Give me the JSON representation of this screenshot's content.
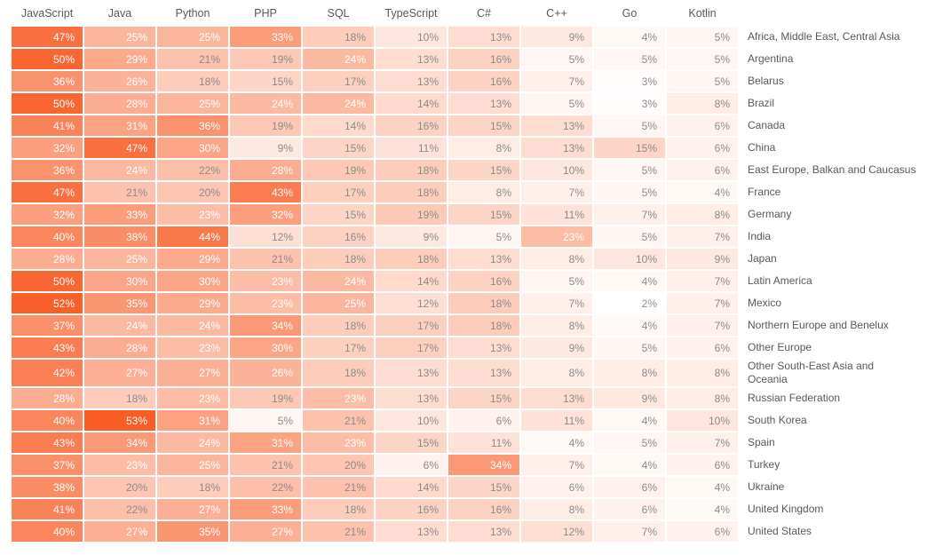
{
  "chart_data": {
    "type": "heatmap",
    "title": "",
    "value_suffix": "%",
    "columns": [
      "JavaScript",
      "Java",
      "Python",
      "PHP",
      "SQL",
      "TypeScript",
      "C#",
      "C++",
      "Go",
      "Kotlin"
    ],
    "rows": [
      {
        "name": "Africa, Middle East, Central Asia",
        "values": [
          47,
          25,
          25,
          33,
          18,
          10,
          13,
          9,
          4,
          5
        ]
      },
      {
        "name": "Argentina",
        "values": [
          50,
          29,
          21,
          19,
          24,
          13,
          16,
          5,
          5,
          5
        ]
      },
      {
        "name": "Belarus",
        "values": [
          36,
          26,
          18,
          15,
          17,
          13,
          16,
          7,
          3,
          5
        ]
      },
      {
        "name": "Brazil",
        "values": [
          50,
          28,
          25,
          24,
          24,
          14,
          13,
          5,
          3,
          8
        ]
      },
      {
        "name": "Canada",
        "values": [
          41,
          31,
          36,
          19,
          14,
          16,
          15,
          13,
          5,
          6
        ]
      },
      {
        "name": "China",
        "values": [
          32,
          47,
          30,
          9,
          15,
          11,
          8,
          13,
          15,
          6
        ]
      },
      {
        "name": "East Europe, Balkan and Caucasus",
        "values": [
          36,
          24,
          22,
          28,
          19,
          18,
          15,
          10,
          5,
          6
        ]
      },
      {
        "name": "France",
        "values": [
          47,
          21,
          20,
          43,
          17,
          18,
          8,
          7,
          5,
          4
        ]
      },
      {
        "name": "Germany",
        "values": [
          32,
          33,
          23,
          32,
          15,
          19,
          15,
          11,
          7,
          8
        ]
      },
      {
        "name": "India",
        "values": [
          40,
          38,
          44,
          12,
          16,
          9,
          5,
          23,
          5,
          7
        ]
      },
      {
        "name": "Japan",
        "values": [
          28,
          25,
          29,
          21,
          18,
          18,
          13,
          8,
          10,
          9
        ]
      },
      {
        "name": "Latin America",
        "values": [
          50,
          30,
          30,
          23,
          24,
          14,
          16,
          5,
          4,
          7
        ]
      },
      {
        "name": "Mexico",
        "values": [
          52,
          35,
          29,
          23,
          25,
          12,
          18,
          7,
          2,
          7
        ]
      },
      {
        "name": "Northern Europe and Benelux",
        "values": [
          37,
          24,
          24,
          34,
          18,
          17,
          18,
          8,
          4,
          7
        ]
      },
      {
        "name": "Other Europe",
        "values": [
          43,
          28,
          23,
          30,
          17,
          17,
          13,
          9,
          5,
          6
        ]
      },
      {
        "name": "Other South-East Asia and Oceania",
        "two_line_label": true,
        "values": [
          42,
          27,
          27,
          26,
          18,
          13,
          13,
          8,
          8,
          8
        ]
      },
      {
        "name": "Russian Federation",
        "values": [
          28,
          18,
          23,
          19,
          23,
          13,
          15,
          13,
          9,
          8
        ]
      },
      {
        "name": "South Korea",
        "values": [
          40,
          53,
          31,
          5,
          21,
          10,
          6,
          11,
          4,
          10
        ]
      },
      {
        "name": "Spain",
        "values": [
          43,
          34,
          24,
          31,
          23,
          15,
          11,
          4,
          5,
          7
        ]
      },
      {
        "name": "Turkey",
        "values": [
          37,
          23,
          25,
          21,
          20,
          6,
          34,
          7,
          4,
          6
        ]
      },
      {
        "name": "Ukraine",
        "values": [
          38,
          20,
          18,
          22,
          21,
          14,
          15,
          6,
          6,
          4
        ]
      },
      {
        "name": "United Kingdom",
        "values": [
          41,
          22,
          27,
          33,
          18,
          16,
          16,
          8,
          6,
          4
        ]
      },
      {
        "name": "United States",
        "values": [
          40,
          27,
          35,
          27,
          21,
          13,
          13,
          12,
          7,
          6
        ]
      }
    ],
    "color_scale": {
      "min": 2,
      "max": 53,
      "low": "#ffffff",
      "high": "#f95c25"
    },
    "text_colors": {
      "light_cell": "#8c8c8c",
      "dark_cell": "#ffffff",
      "white_threshold": 23
    },
    "header_color": "#595959",
    "label_color": "#595959",
    "grid": "2px white gaps between cells",
    "legend_position": "none"
  }
}
